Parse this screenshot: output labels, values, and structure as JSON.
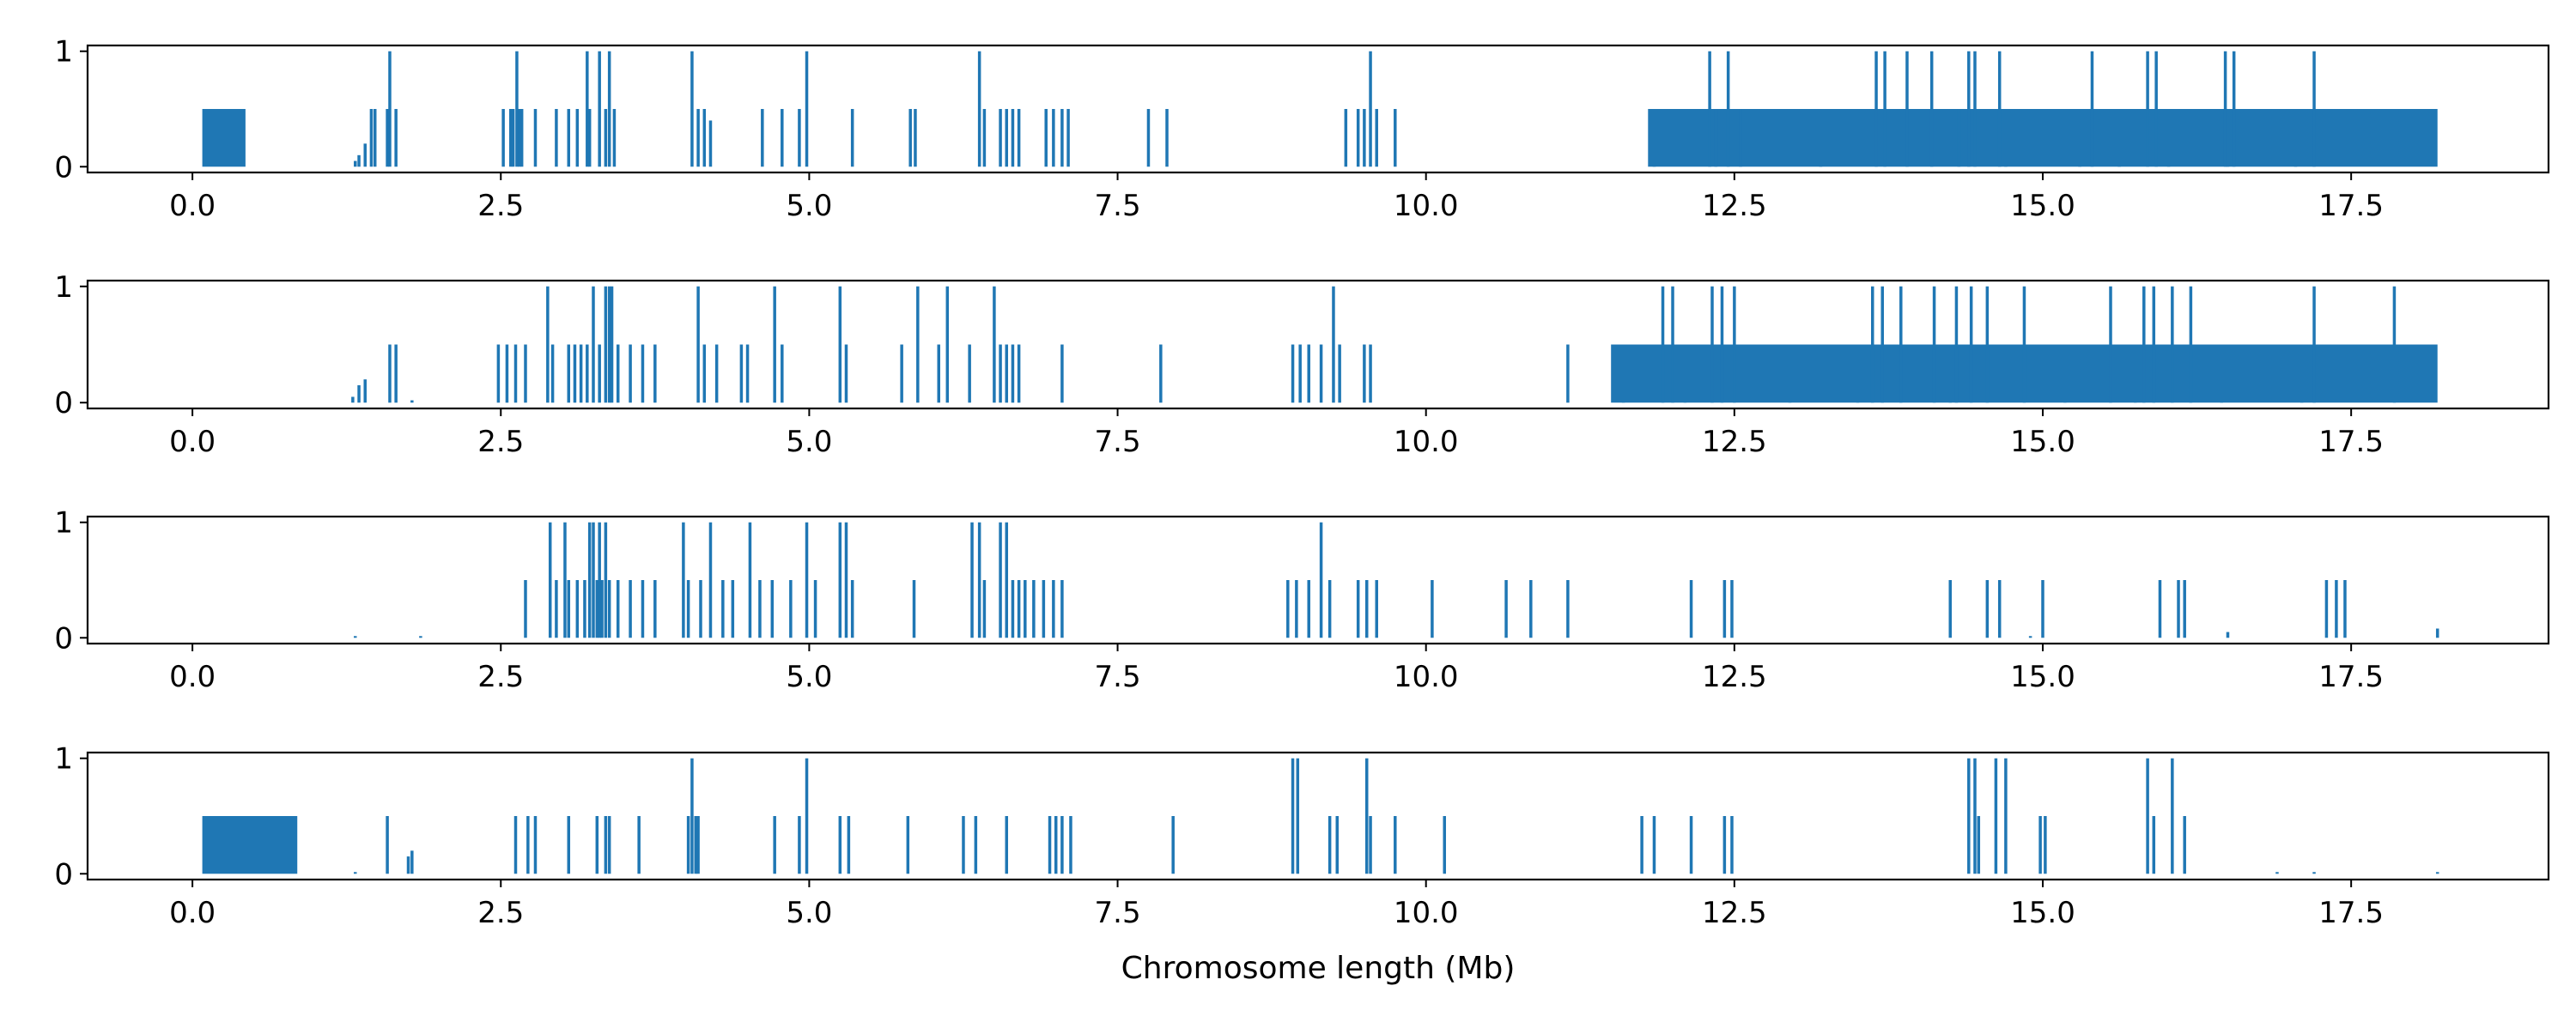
{
  "chart_data": {
    "type": "bar",
    "xlabel": "Chromosome length (Mb)",
    "xlim": [
      -0.85,
      19.1
    ],
    "ylim": [
      -0.05,
      1.05
    ],
    "xticks": [
      "0.0",
      "2.5",
      "5.0",
      "7.5",
      "10.0",
      "12.5",
      "15.0",
      "17.5"
    ],
    "yticks": [
      "0",
      "1"
    ],
    "bar_color": "#1f77b4",
    "panels": [
      {
        "blocks": [
          [
            0.08,
            0.43,
            0.5
          ],
          [
            11.8,
            18.2,
            0.5
          ]
        ],
        "lines": [
          [
            1.32,
            0.05
          ],
          [
            1.35,
            0.1
          ],
          [
            1.4,
            0.2
          ],
          [
            1.45,
            0.5
          ],
          [
            1.48,
            0.5
          ],
          [
            1.58,
            0.5
          ],
          [
            1.6,
            1.0
          ],
          [
            1.65,
            0.5
          ],
          [
            2.52,
            0.5
          ],
          [
            2.58,
            0.5
          ],
          [
            2.6,
            0.5
          ],
          [
            2.63,
            1.0
          ],
          [
            2.65,
            0.5
          ],
          [
            2.67,
            0.5
          ],
          [
            2.78,
            0.5
          ],
          [
            2.95,
            0.5
          ],
          [
            3.05,
            0.5
          ],
          [
            3.12,
            0.5
          ],
          [
            3.2,
            1.0
          ],
          [
            3.22,
            0.5
          ],
          [
            3.3,
            1.0
          ],
          [
            3.35,
            0.5
          ],
          [
            3.38,
            1.0
          ],
          [
            3.42,
            0.5
          ],
          [
            4.05,
            1.0
          ],
          [
            4.1,
            0.5
          ],
          [
            4.15,
            0.5
          ],
          [
            4.2,
            0.4
          ],
          [
            4.62,
            0.5
          ],
          [
            4.78,
            0.5
          ],
          [
            4.92,
            0.5
          ],
          [
            4.98,
            1.0
          ],
          [
            5.35,
            0.5
          ],
          [
            5.82,
            0.5
          ],
          [
            5.86,
            0.5
          ],
          [
            6.38,
            1.0
          ],
          [
            6.42,
            0.5
          ],
          [
            6.55,
            0.5
          ],
          [
            6.6,
            0.5
          ],
          [
            6.65,
            0.5
          ],
          [
            6.7,
            0.5
          ],
          [
            6.92,
            0.5
          ],
          [
            6.98,
            0.5
          ],
          [
            7.05,
            0.5
          ],
          [
            7.1,
            0.5
          ],
          [
            7.75,
            0.5
          ],
          [
            7.9,
            0.5
          ],
          [
            9.35,
            0.5
          ],
          [
            9.45,
            0.5
          ],
          [
            9.5,
            0.5
          ],
          [
            9.55,
            1.0
          ],
          [
            9.6,
            0.5
          ],
          [
            9.75,
            0.5
          ],
          [
            12.3,
            1.0
          ],
          [
            12.35,
            0.5
          ],
          [
            12.45,
            1.0
          ],
          [
            12.55,
            0.5
          ],
          [
            13.65,
            1.0
          ],
          [
            13.72,
            1.0
          ],
          [
            13.9,
            1.0
          ],
          [
            14.1,
            1.0
          ],
          [
            14.32,
            0.5
          ],
          [
            14.4,
            1.0
          ],
          [
            14.45,
            1.0
          ],
          [
            14.65,
            1.0
          ],
          [
            15.4,
            1.0
          ],
          [
            15.85,
            1.0
          ],
          [
            15.92,
            1.0
          ],
          [
            16.48,
            1.0
          ],
          [
            16.55,
            1.0
          ],
          [
            17.2,
            1.0
          ],
          [
            11.85,
            0.0
          ],
          [
            13.2,
            0.0
          ],
          [
            14.7,
            0.0
          ],
          [
            15.3,
            0.0
          ],
          [
            15.62,
            0.0
          ],
          [
            16.02,
            0.0
          ],
          [
            16.5,
            0.0
          ],
          [
            17.05,
            0.0
          ]
        ]
      },
      {
        "blocks": [
          [
            11.5,
            18.2,
            0.5
          ]
        ],
        "lines": [
          [
            1.3,
            0.05
          ],
          [
            1.35,
            0.15
          ],
          [
            1.4,
            0.2
          ],
          [
            1.6,
            0.5
          ],
          [
            1.65,
            0.5
          ],
          [
            1.78,
            0.02
          ],
          [
            2.48,
            0.5
          ],
          [
            2.55,
            0.5
          ],
          [
            2.62,
            0.5
          ],
          [
            2.7,
            0.5
          ],
          [
            2.88,
            1.0
          ],
          [
            2.92,
            0.5
          ],
          [
            3.05,
            0.5
          ],
          [
            3.1,
            0.5
          ],
          [
            3.15,
            0.5
          ],
          [
            3.2,
            0.5
          ],
          [
            3.25,
            1.0
          ],
          [
            3.3,
            0.5
          ],
          [
            3.35,
            1.0
          ],
          [
            3.38,
            1.0
          ],
          [
            3.4,
            1.0
          ],
          [
            3.45,
            0.5
          ],
          [
            3.55,
            0.5
          ],
          [
            3.65,
            0.5
          ],
          [
            3.75,
            0.5
          ],
          [
            4.1,
            1.0
          ],
          [
            4.15,
            0.5
          ],
          [
            4.25,
            0.5
          ],
          [
            4.45,
            0.5
          ],
          [
            4.5,
            0.5
          ],
          [
            4.72,
            1.0
          ],
          [
            4.78,
            0.5
          ],
          [
            5.25,
            1.0
          ],
          [
            5.3,
            0.5
          ],
          [
            5.75,
            0.5
          ],
          [
            5.88,
            1.0
          ],
          [
            6.05,
            0.5
          ],
          [
            6.12,
            1.0
          ],
          [
            6.3,
            0.5
          ],
          [
            6.5,
            1.0
          ],
          [
            6.55,
            0.5
          ],
          [
            6.6,
            0.5
          ],
          [
            6.65,
            0.5
          ],
          [
            6.7,
            0.5
          ],
          [
            7.05,
            0.5
          ],
          [
            7.85,
            0.5
          ],
          [
            8.92,
            0.5
          ],
          [
            8.98,
            0.5
          ],
          [
            9.05,
            0.5
          ],
          [
            9.15,
            0.5
          ],
          [
            9.25,
            1.0
          ],
          [
            9.3,
            0.5
          ],
          [
            9.5,
            0.5
          ],
          [
            9.55,
            0.5
          ],
          [
            11.15,
            0.5
          ],
          [
            11.92,
            1.0
          ],
          [
            12.0,
            1.0
          ],
          [
            12.32,
            1.0
          ],
          [
            12.4,
            1.0
          ],
          [
            12.5,
            1.0
          ],
          [
            13.62,
            1.0
          ],
          [
            13.7,
            1.0
          ],
          [
            13.85,
            1.0
          ],
          [
            14.12,
            1.0
          ],
          [
            14.3,
            1.0
          ],
          [
            14.42,
            1.0
          ],
          [
            14.55,
            1.0
          ],
          [
            14.85,
            1.0
          ],
          [
            15.55,
            1.0
          ],
          [
            15.82,
            1.0
          ],
          [
            15.9,
            1.0
          ],
          [
            16.05,
            1.0
          ],
          [
            16.2,
            1.0
          ],
          [
            17.2,
            1.0
          ],
          [
            17.85,
            1.0
          ],
          [
            11.6,
            0.0
          ],
          [
            12.1,
            0.0
          ],
          [
            12.95,
            0.0
          ],
          [
            13.5,
            0.0
          ],
          [
            14.25,
            0.0
          ],
          [
            15.18,
            0.0
          ],
          [
            15.75,
            0.0
          ],
          [
            16.45,
            0.0
          ],
          [
            17.1,
            0.0
          ]
        ]
      },
      {
        "blocks": [],
        "lines": [
          [
            2.7,
            0.5
          ],
          [
            2.9,
            1.0
          ],
          [
            2.95,
            0.5
          ],
          [
            3.02,
            1.0
          ],
          [
            3.05,
            0.5
          ],
          [
            3.12,
            0.5
          ],
          [
            3.18,
            0.5
          ],
          [
            3.22,
            1.0
          ],
          [
            3.25,
            1.0
          ],
          [
            3.28,
            0.5
          ],
          [
            3.3,
            1.0
          ],
          [
            3.32,
            0.5
          ],
          [
            3.35,
            1.0
          ],
          [
            3.38,
            0.5
          ],
          [
            3.45,
            0.5
          ],
          [
            3.55,
            0.5
          ],
          [
            3.65,
            0.5
          ],
          [
            3.75,
            0.5
          ],
          [
            3.98,
            1.0
          ],
          [
            4.02,
            0.5
          ],
          [
            4.12,
            0.5
          ],
          [
            4.2,
            1.0
          ],
          [
            4.3,
            0.5
          ],
          [
            4.38,
            0.5
          ],
          [
            4.52,
            1.0
          ],
          [
            4.6,
            0.5
          ],
          [
            4.7,
            0.5
          ],
          [
            4.85,
            0.5
          ],
          [
            4.98,
            1.0
          ],
          [
            5.05,
            0.5
          ],
          [
            5.25,
            1.0
          ],
          [
            5.3,
            1.0
          ],
          [
            5.35,
            0.5
          ],
          [
            5.85,
            0.5
          ],
          [
            6.32,
            1.0
          ],
          [
            6.38,
            1.0
          ],
          [
            6.42,
            0.5
          ],
          [
            6.55,
            1.0
          ],
          [
            6.6,
            1.0
          ],
          [
            6.65,
            0.5
          ],
          [
            6.7,
            0.5
          ],
          [
            6.75,
            0.5
          ],
          [
            6.82,
            0.5
          ],
          [
            6.9,
            0.5
          ],
          [
            6.98,
            0.5
          ],
          [
            7.05,
            0.5
          ],
          [
            8.88,
            0.5
          ],
          [
            8.95,
            0.5
          ],
          [
            9.05,
            0.5
          ],
          [
            9.15,
            1.0
          ],
          [
            9.22,
            0.5
          ],
          [
            9.45,
            0.5
          ],
          [
            9.52,
            0.5
          ],
          [
            9.6,
            0.5
          ],
          [
            10.05,
            0.5
          ],
          [
            10.65,
            0.5
          ],
          [
            10.85,
            0.5
          ],
          [
            11.15,
            0.5
          ],
          [
            12.15,
            0.5
          ],
          [
            12.42,
            0.5
          ],
          [
            12.48,
            0.5
          ],
          [
            14.25,
            0.5
          ],
          [
            14.55,
            0.5
          ],
          [
            14.65,
            0.5
          ],
          [
            15.0,
            0.5
          ],
          [
            15.95,
            0.5
          ],
          [
            16.1,
            0.5
          ],
          [
            16.15,
            0.5
          ],
          [
            17.3,
            0.5
          ],
          [
            17.38,
            0.5
          ],
          [
            17.45,
            0.5
          ],
          [
            18.2,
            0.08
          ],
          [
            1.32,
            0.01
          ],
          [
            1.85,
            0.01
          ],
          [
            14.9,
            0.0
          ],
          [
            16.5,
            0.05
          ]
        ]
      },
      {
        "blocks": [
          [
            0.08,
            0.85,
            0.5
          ]
        ],
        "lines": [
          [
            1.32,
            0.01
          ],
          [
            1.58,
            0.5
          ],
          [
            1.75,
            0.15
          ],
          [
            1.78,
            0.2
          ],
          [
            2.62,
            0.5
          ],
          [
            2.72,
            0.5
          ],
          [
            2.78,
            0.5
          ],
          [
            3.05,
            0.5
          ],
          [
            3.28,
            0.5
          ],
          [
            3.35,
            0.5
          ],
          [
            3.38,
            0.5
          ],
          [
            3.62,
            0.5
          ],
          [
            4.02,
            0.5
          ],
          [
            4.05,
            1.0
          ],
          [
            4.08,
            0.5
          ],
          [
            4.1,
            0.5
          ],
          [
            4.72,
            0.5
          ],
          [
            4.92,
            0.5
          ],
          [
            4.98,
            1.0
          ],
          [
            5.25,
            0.5
          ],
          [
            5.32,
            0.5
          ],
          [
            5.8,
            0.5
          ],
          [
            6.25,
            0.5
          ],
          [
            6.35,
            0.5
          ],
          [
            6.6,
            0.5
          ],
          [
            6.95,
            0.5
          ],
          [
            7.0,
            0.5
          ],
          [
            7.05,
            0.5
          ],
          [
            7.12,
            0.5
          ],
          [
            7.95,
            0.5
          ],
          [
            8.92,
            1.0
          ],
          [
            8.96,
            1.0
          ],
          [
            9.22,
            0.5
          ],
          [
            9.28,
            0.5
          ],
          [
            9.52,
            1.0
          ],
          [
            9.55,
            0.5
          ],
          [
            9.75,
            0.5
          ],
          [
            10.15,
            0.5
          ],
          [
            11.75,
            0.5
          ],
          [
            11.85,
            0.5
          ],
          [
            12.15,
            0.5
          ],
          [
            12.42,
            0.5
          ],
          [
            12.48,
            0.5
          ],
          [
            14.4,
            1.0
          ],
          [
            14.45,
            1.0
          ],
          [
            14.48,
            0.5
          ],
          [
            14.62,
            1.0
          ],
          [
            14.7,
            1.0
          ],
          [
            14.98,
            0.5
          ],
          [
            15.02,
            0.5
          ],
          [
            15.85,
            1.0
          ],
          [
            15.9,
            0.5
          ],
          [
            16.05,
            1.0
          ],
          [
            16.15,
            0.5
          ],
          [
            17.2,
            0.0
          ],
          [
            18.2,
            0.0
          ],
          [
            16.9,
            0.0
          ]
        ]
      }
    ]
  }
}
